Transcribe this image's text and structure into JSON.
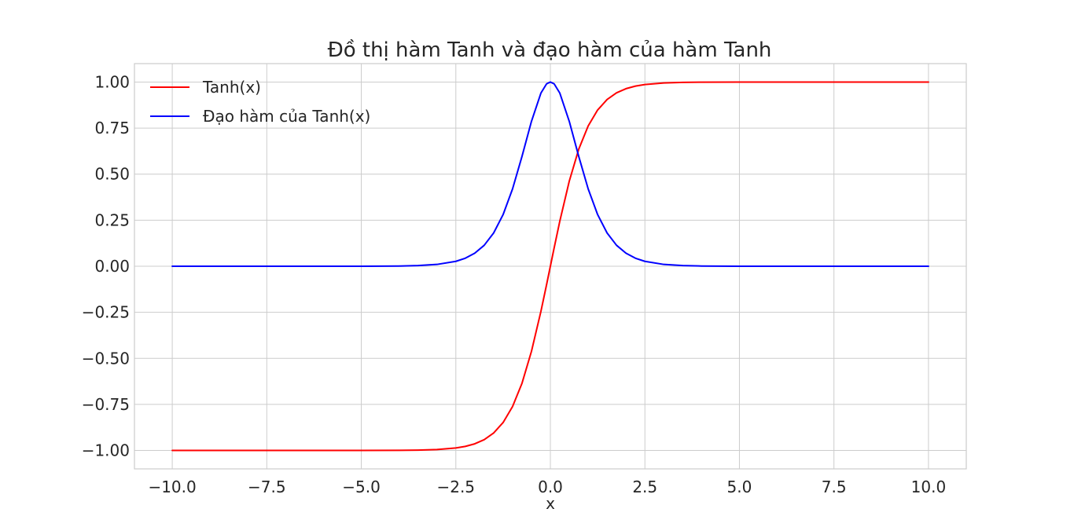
{
  "chart_data": {
    "type": "line",
    "title": "Đồ thị hàm Tanh và đạo hàm của hàm Tanh",
    "xlabel": "x",
    "ylabel": "",
    "xlim": [
      -11.0,
      11.0
    ],
    "ylim": [
      -1.1,
      1.1
    ],
    "x_ticks": [
      -10.0,
      -7.5,
      -5.0,
      -2.5,
      0.0,
      2.5,
      5.0,
      7.5,
      10.0
    ],
    "x_tick_labels": [
      "−10.0",
      "−7.5",
      "−5.0",
      "−2.5",
      "0.0",
      "2.5",
      "5.0",
      "7.5",
      "10.0"
    ],
    "y_ticks": [
      -1.0,
      -0.75,
      -0.5,
      -0.25,
      0.0,
      0.25,
      0.5,
      0.75,
      1.0
    ],
    "y_tick_labels": [
      "−1.00",
      "−0.75",
      "−0.50",
      "−0.25",
      "0.00",
      "0.25",
      "0.50",
      "0.75",
      "1.00"
    ],
    "grid": true,
    "legend_position": "upper-left",
    "x": [
      -10.0,
      -7.5,
      -5.0,
      -4.0,
      -3.5,
      -3.0,
      -2.5,
      -2.25,
      -2.0,
      -1.75,
      -1.5,
      -1.25,
      -1.0,
      -0.75,
      -0.5,
      -0.25,
      -0.1,
      0.0,
      0.1,
      0.25,
      0.5,
      0.75,
      1.0,
      1.25,
      1.5,
      1.75,
      2.0,
      2.25,
      2.5,
      3.0,
      3.5,
      4.0,
      5.0,
      7.5,
      10.0
    ],
    "series": [
      {
        "name": "Tanh(x)",
        "color": "#ff0000",
        "values": [
          -1.0,
          -1.0,
          -0.9999,
          -0.9993,
          -0.9982,
          -0.9951,
          -0.9866,
          -0.978,
          -0.964,
          -0.9414,
          -0.9051,
          -0.8483,
          -0.7616,
          -0.6351,
          -0.4621,
          -0.2449,
          -0.0997,
          0.0,
          0.0997,
          0.2449,
          0.4621,
          0.6351,
          0.7616,
          0.8483,
          0.9051,
          0.9414,
          0.964,
          0.978,
          0.9866,
          0.9951,
          0.9982,
          0.9993,
          0.9999,
          1.0,
          1.0
        ]
      },
      {
        "name": "Đạo hàm của Tanh(x)",
        "color": "#0000ff",
        "values": [
          0.0,
          0.0,
          0.0002,
          0.0013,
          0.0036,
          0.0099,
          0.0266,
          0.0435,
          0.0707,
          0.1138,
          0.1807,
          0.2804,
          0.42,
          0.5966,
          0.7864,
          0.94,
          0.9901,
          1.0,
          0.9901,
          0.94,
          0.7864,
          0.5966,
          0.42,
          0.2804,
          0.1807,
          0.1138,
          0.0707,
          0.0435,
          0.0266,
          0.0099,
          0.0036,
          0.0013,
          0.0002,
          0.0,
          0.0
        ]
      }
    ]
  },
  "colors": {
    "grid": "#cccccc",
    "frame": "#cccccc",
    "text": "#262626",
    "background": "#ffffff"
  }
}
